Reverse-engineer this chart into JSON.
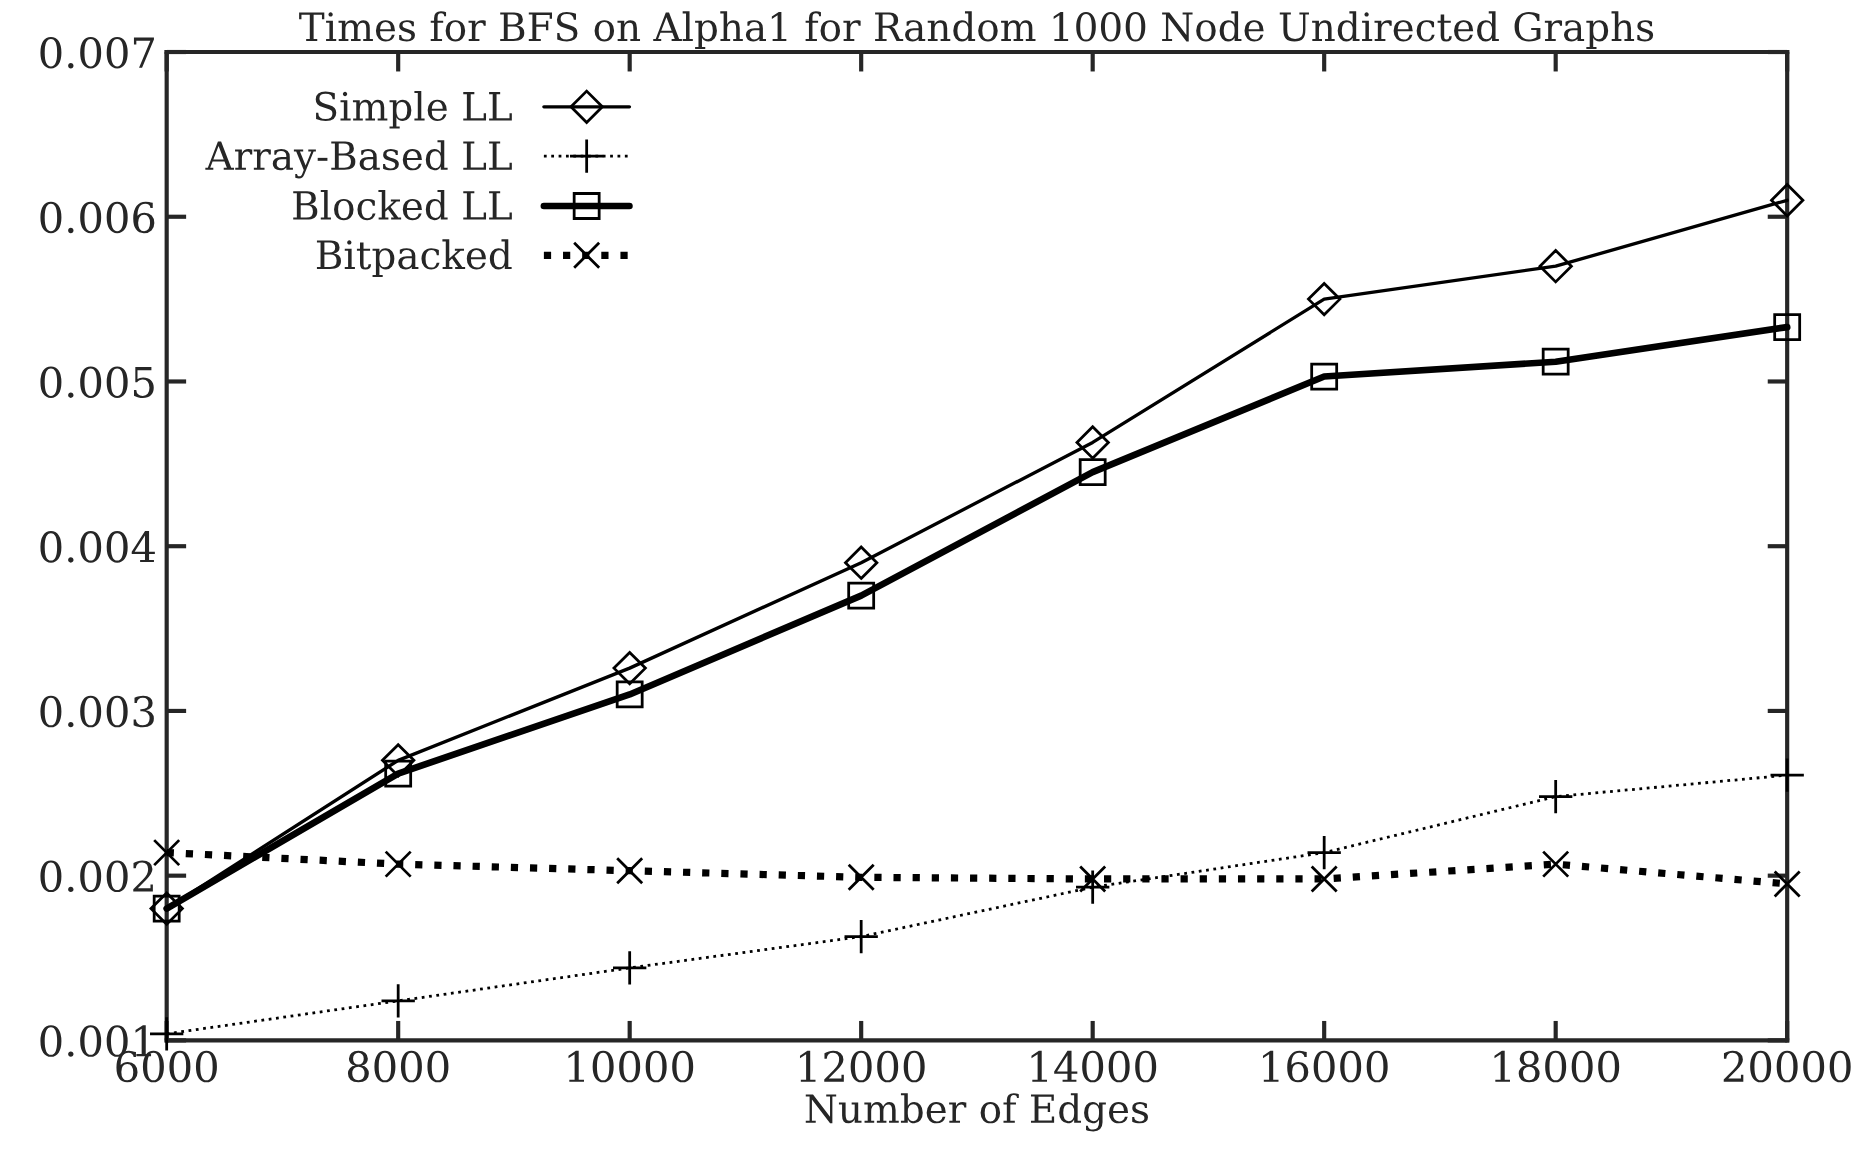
{
  "chart_data": {
    "type": "line",
    "title": "Times for BFS on Alpha1 for Random 1000 Node Undirected Graphs",
    "xlabel": "Number of Edges",
    "x": [
      6000,
      8000,
      10000,
      12000,
      14000,
      16000,
      18000,
      20000
    ],
    "series": [
      {
        "name": "Simple LL",
        "color": "#000000",
        "marker": "diamond",
        "line_style": "solid",
        "values": [
          0.0018,
          0.0027,
          0.00326,
          0.0039,
          0.00463,
          0.0055,
          0.0057,
          0.0061
        ]
      },
      {
        "name": "Array-Based LL",
        "color": "#000000",
        "marker": "plus",
        "line_style": "dotted",
        "values": [
          0.00104,
          0.00124,
          0.00144,
          0.00163,
          0.00193,
          0.00214,
          0.00248,
          0.00261
        ]
      },
      {
        "name": "Blocked LL",
        "color": "#000000",
        "marker": "square",
        "line_style": "solid",
        "values": [
          0.0018,
          0.00262,
          0.0031,
          0.0037,
          0.00445,
          0.00503,
          0.00512,
          0.00533
        ]
      },
      {
        "name": "Bitpacked",
        "color": "#000000",
        "marker": "cross",
        "line_style": "dotted",
        "values": [
          0.00214,
          0.00207,
          0.00203,
          0.00199,
          0.00198,
          0.00198,
          0.00207,
          0.00195
        ]
      }
    ],
    "xlim": [
      6000,
      20000
    ],
    "xticks": [
      6000,
      8000,
      10000,
      12000,
      14000,
      16000,
      18000,
      20000
    ],
    "ylim": [
      0.001,
      0.007
    ],
    "yticks": [
      0.001,
      0.002,
      0.003,
      0.004,
      0.005,
      0.006,
      0.007
    ],
    "grid": false,
    "legend": "top left"
  }
}
